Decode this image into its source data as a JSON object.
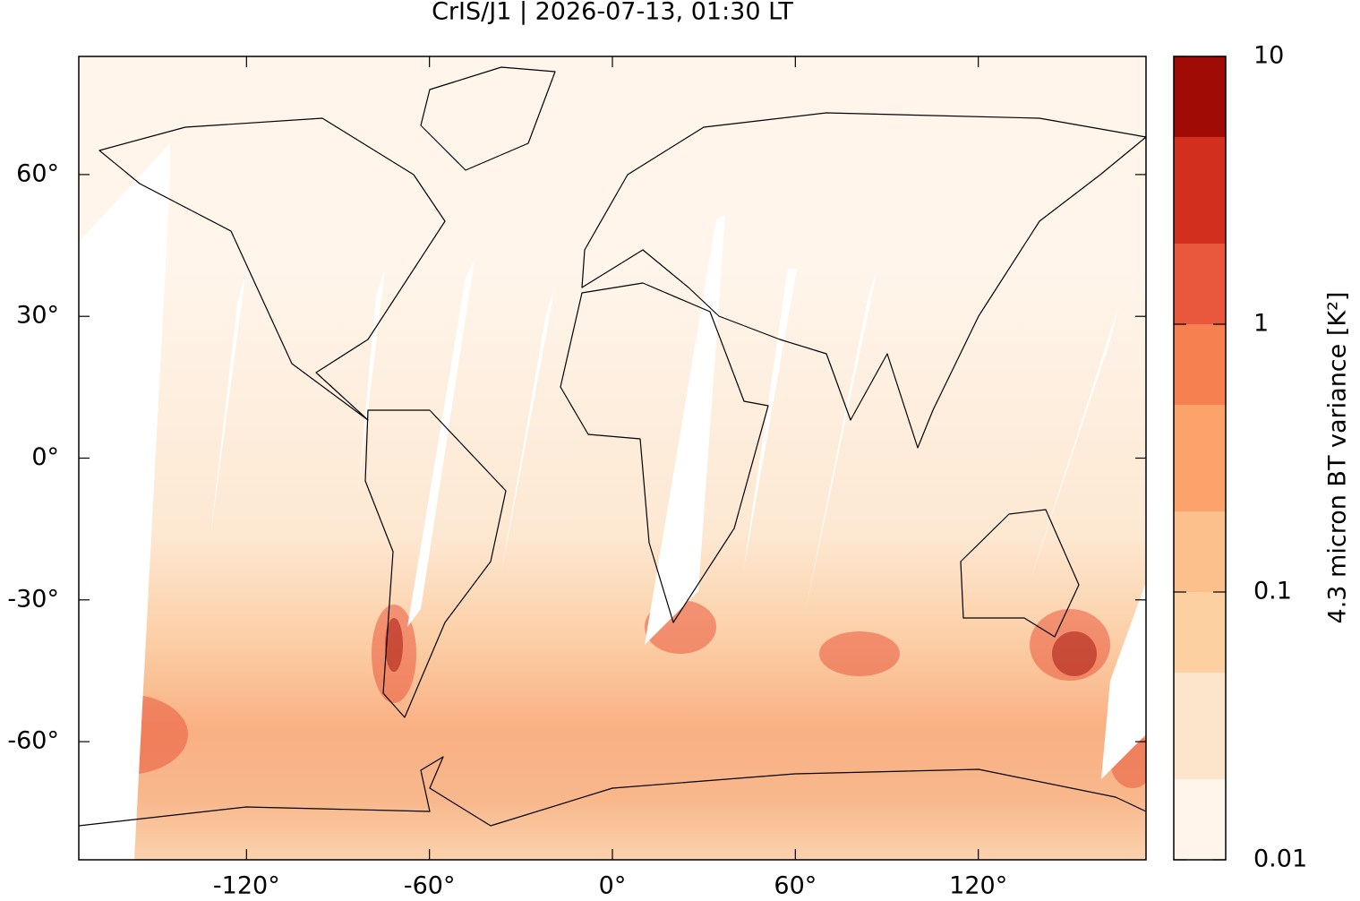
{
  "chart_data": {
    "type": "map",
    "title": "CrIS/J1 | 2026-07-13, 01:30 LT",
    "xlim": [
      -175,
      175
    ],
    "ylim": [
      -85,
      85
    ],
    "xticks": [
      {
        "value": -120,
        "label": "-120°"
      },
      {
        "value": -60,
        "label": "-60°"
      },
      {
        "value": 0,
        "label": "0°"
      },
      {
        "value": 60,
        "label": "60°"
      },
      {
        "value": 120,
        "label": "120°"
      }
    ],
    "yticks": [
      {
        "value": -60,
        "label": "-60°"
      },
      {
        "value": -30,
        "label": "-30°"
      },
      {
        "value": 0,
        "label": "0°"
      },
      {
        "value": 30,
        "label": "30°"
      },
      {
        "value": 60,
        "label": "60°"
      }
    ],
    "colorbar": {
      "label": "4.3 micron BT variance [K²]",
      "log": true,
      "lim": [
        0.01,
        10
      ],
      "ticks": [
        0.01,
        0.1,
        1,
        10
      ],
      "levels": [
        0.01,
        0.02,
        0.05,
        0.1,
        0.2,
        0.5,
        1,
        2,
        5,
        10
      ],
      "colors": [
        "#fff5eb",
        "#fde5cb",
        "#fdd0a2",
        "#fcc08c",
        "#fba36b",
        "#f6804f",
        "#e9573d",
        "#d32f1f",
        "#a00b06"
      ]
    }
  }
}
